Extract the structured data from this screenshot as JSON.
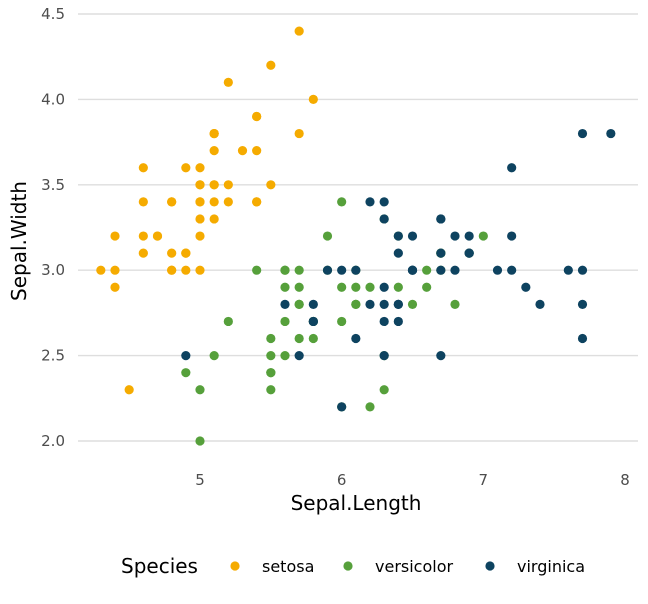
{
  "chart_data": {
    "type": "scatter",
    "title": "",
    "xlabel": "Sepal.Length",
    "ylabel": "Sepal.Width",
    "xlim": [
      4.3,
      7.9
    ],
    "ylim": [
      2.0,
      4.4
    ],
    "x_ticks": [
      "5",
      "6",
      "7",
      "8"
    ],
    "y_ticks": [
      "2.0",
      "2.5",
      "3.0",
      "3.5",
      "4.0",
      "4.5"
    ],
    "grid": "horizontal-major",
    "legend": {
      "title": "Species",
      "position": "bottom"
    },
    "series": [
      {
        "name": "setosa",
        "color": "#F5AB00",
        "points": [
          [
            5.1,
            3.5
          ],
          [
            4.9,
            3.0
          ],
          [
            4.7,
            3.2
          ],
          [
            4.6,
            3.1
          ],
          [
            5.0,
            3.6
          ],
          [
            5.4,
            3.9
          ],
          [
            4.6,
            3.4
          ],
          [
            5.0,
            3.4
          ],
          [
            4.4,
            2.9
          ],
          [
            4.9,
            3.1
          ],
          [
            5.4,
            3.7
          ],
          [
            4.8,
            3.4
          ],
          [
            4.8,
            3.0
          ],
          [
            4.3,
            3.0
          ],
          [
            5.8,
            4.0
          ],
          [
            5.7,
            4.4
          ],
          [
            5.4,
            3.9
          ],
          [
            5.1,
            3.5
          ],
          [
            5.7,
            3.8
          ],
          [
            5.1,
            3.8
          ],
          [
            5.4,
            3.4
          ],
          [
            5.1,
            3.7
          ],
          [
            4.6,
            3.6
          ],
          [
            5.1,
            3.3
          ],
          [
            4.8,
            3.4
          ],
          [
            5.0,
            3.0
          ],
          [
            5.0,
            3.4
          ],
          [
            5.2,
            3.5
          ],
          [
            5.2,
            3.4
          ],
          [
            4.7,
            3.2
          ],
          [
            4.8,
            3.1
          ],
          [
            5.4,
            3.4
          ],
          [
            5.2,
            4.1
          ],
          [
            5.5,
            4.2
          ],
          [
            4.9,
            3.1
          ],
          [
            5.0,
            3.2
          ],
          [
            5.5,
            3.5
          ],
          [
            4.9,
            3.6
          ],
          [
            4.4,
            3.0
          ],
          [
            5.1,
            3.4
          ],
          [
            5.0,
            3.5
          ],
          [
            4.5,
            2.3
          ],
          [
            4.4,
            3.2
          ],
          [
            5.0,
            3.5
          ],
          [
            5.1,
            3.8
          ],
          [
            4.8,
            3.0
          ],
          [
            5.1,
            3.8
          ],
          [
            4.6,
            3.2
          ],
          [
            5.3,
            3.7
          ],
          [
            5.0,
            3.3
          ]
        ]
      },
      {
        "name": "versicolor",
        "color": "#56A03B",
        "points": [
          [
            7.0,
            3.2
          ],
          [
            6.4,
            3.2
          ],
          [
            6.9,
            3.1
          ],
          [
            5.5,
            2.3
          ],
          [
            6.5,
            2.8
          ],
          [
            5.7,
            2.8
          ],
          [
            6.3,
            3.3
          ],
          [
            4.9,
            2.4
          ],
          [
            6.6,
            2.9
          ],
          [
            5.2,
            2.7
          ],
          [
            5.0,
            2.0
          ],
          [
            5.9,
            3.0
          ],
          [
            6.0,
            2.2
          ],
          [
            6.1,
            2.9
          ],
          [
            5.6,
            2.9
          ],
          [
            6.7,
            3.1
          ],
          [
            5.6,
            3.0
          ],
          [
            5.8,
            2.7
          ],
          [
            6.2,
            2.2
          ],
          [
            5.6,
            2.5
          ],
          [
            5.9,
            3.2
          ],
          [
            6.1,
            2.8
          ],
          [
            6.3,
            2.5
          ],
          [
            6.1,
            2.8
          ],
          [
            6.4,
            2.9
          ],
          [
            6.6,
            3.0
          ],
          [
            6.8,
            2.8
          ],
          [
            6.7,
            3.0
          ],
          [
            6.0,
            2.9
          ],
          [
            5.7,
            2.6
          ],
          [
            5.5,
            2.4
          ],
          [
            5.5,
            2.4
          ],
          [
            5.8,
            2.7
          ],
          [
            6.0,
            2.7
          ],
          [
            5.4,
            3.0
          ],
          [
            6.0,
            3.4
          ],
          [
            6.7,
            3.1
          ],
          [
            6.3,
            2.3
          ],
          [
            5.6,
            3.0
          ],
          [
            5.5,
            2.5
          ],
          [
            5.5,
            2.6
          ],
          [
            6.1,
            3.0
          ],
          [
            5.8,
            2.6
          ],
          [
            5.0,
            2.3
          ],
          [
            5.6,
            2.7
          ],
          [
            5.7,
            3.0
          ],
          [
            5.7,
            2.9
          ],
          [
            6.2,
            2.9
          ],
          [
            5.1,
            2.5
          ],
          [
            5.7,
            2.8
          ]
        ]
      },
      {
        "name": "virginica",
        "color": "#0E4360",
        "points": [
          [
            6.3,
            3.3
          ],
          [
            5.8,
            2.7
          ],
          [
            7.1,
            3.0
          ],
          [
            6.3,
            2.9
          ],
          [
            6.5,
            3.0
          ],
          [
            7.6,
            3.0
          ],
          [
            4.9,
            2.5
          ],
          [
            7.3,
            2.9
          ],
          [
            6.7,
            2.5
          ],
          [
            7.2,
            3.6
          ],
          [
            6.5,
            3.2
          ],
          [
            6.4,
            2.7
          ],
          [
            6.8,
            3.0
          ],
          [
            5.7,
            2.5
          ],
          [
            5.8,
            2.8
          ],
          [
            6.4,
            3.2
          ],
          [
            6.5,
            3.0
          ],
          [
            7.7,
            3.8
          ],
          [
            7.7,
            2.6
          ],
          [
            6.0,
            2.2
          ],
          [
            6.9,
            3.2
          ],
          [
            5.6,
            2.8
          ],
          [
            7.7,
            2.8
          ],
          [
            6.3,
            2.7
          ],
          [
            6.7,
            3.3
          ],
          [
            7.2,
            3.2
          ],
          [
            6.2,
            2.8
          ],
          [
            6.1,
            3.0
          ],
          [
            6.4,
            2.8
          ],
          [
            7.2,
            3.0
          ],
          [
            7.4,
            2.8
          ],
          [
            7.9,
            3.8
          ],
          [
            6.4,
            2.8
          ],
          [
            6.3,
            2.8
          ],
          [
            6.1,
            2.6
          ],
          [
            7.7,
            3.0
          ],
          [
            6.3,
            3.4
          ],
          [
            6.4,
            3.1
          ],
          [
            6.0,
            3.0
          ],
          [
            6.9,
            3.1
          ],
          [
            6.7,
            3.1
          ],
          [
            6.9,
            3.1
          ],
          [
            5.8,
            2.7
          ],
          [
            6.8,
            3.2
          ],
          [
            6.7,
            3.3
          ],
          [
            6.7,
            3.0
          ],
          [
            6.3,
            2.5
          ],
          [
            6.5,
            3.0
          ],
          [
            6.2,
            3.4
          ],
          [
            5.9,
            3.0
          ]
        ]
      }
    ]
  }
}
